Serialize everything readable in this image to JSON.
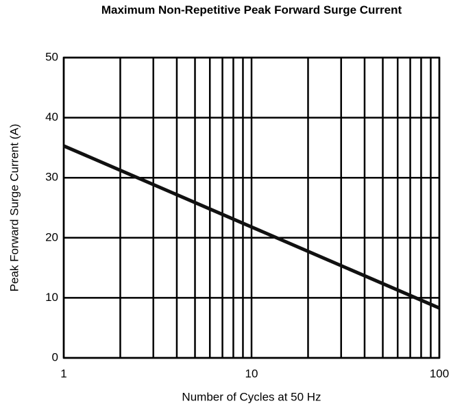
{
  "chart_data": {
    "type": "line",
    "title": "Maximum Non-Repetitive Peak Forward Surge Current",
    "xlabel": "Number of Cycles at 50 Hz",
    "ylabel": "Peak Forward Surge Current (A)",
    "xscale": "log",
    "grid": true,
    "x": [
      1,
      10,
      100
    ],
    "series": [
      {
        "color": "#111111",
        "values": [
          35.3,
          21.8,
          8.3
        ]
      }
    ],
    "xlim": [
      1,
      100
    ],
    "xticks": [
      1,
      10,
      100
    ],
    "xminorticks": [
      2,
      3,
      4,
      5,
      6,
      7,
      8,
      9,
      20,
      30,
      40,
      50,
      60,
      70,
      80,
      90
    ],
    "ylim": [
      0,
      50
    ],
    "yticks": [
      0,
      10,
      20,
      30,
      40,
      50
    ]
  }
}
